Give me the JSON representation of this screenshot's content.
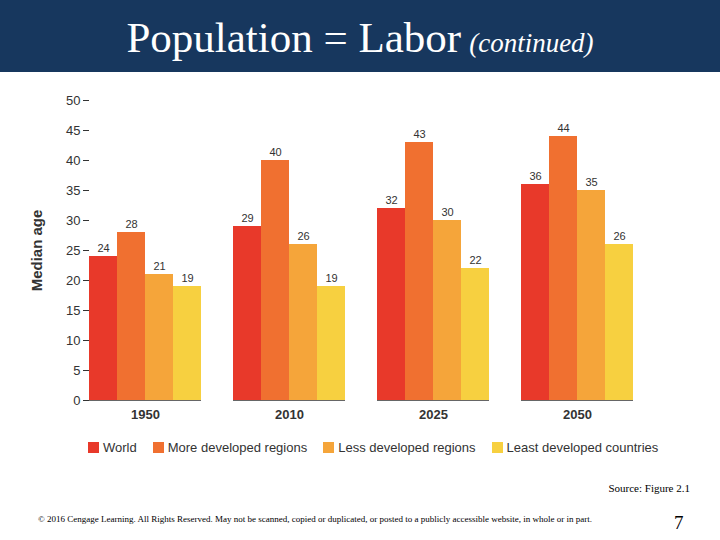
{
  "chart_data": {
    "type": "bar",
    "title": "Population = Labor",
    "subtitle": "(continued)",
    "y_label": "Median age",
    "categories": [
      "1950",
      "2010",
      "2025",
      "2050"
    ],
    "series": [
      {
        "name": "World",
        "color": "#e8392a",
        "values": [
          24,
          29,
          32,
          36
        ]
      },
      {
        "name": "More developed regions",
        "color": "#f07030",
        "values": [
          28,
          40,
          43,
          44
        ]
      },
      {
        "name": "Less developed regions",
        "color": "#f5a53a",
        "values": [
          21,
          26,
          30,
          35
        ]
      },
      {
        "name": "Least developed countries",
        "color": "#f7d040",
        "values": [
          19,
          19,
          22,
          26
        ]
      }
    ],
    "ylim": [
      0,
      50
    ],
    "yticks": [
      0,
      5,
      10,
      15,
      20,
      25,
      30,
      35,
      40,
      45,
      50
    ],
    "grid": false,
    "legend": "bottom",
    "data_labels": true
  },
  "slide": {
    "source": "Source: Figure 2.1",
    "footer": "© 2016 Cengage Learning. All Rights Reserved. May not be scanned, copied or duplicated, or posted to a publicly accessible website, in whole or in part.",
    "page": 7
  }
}
